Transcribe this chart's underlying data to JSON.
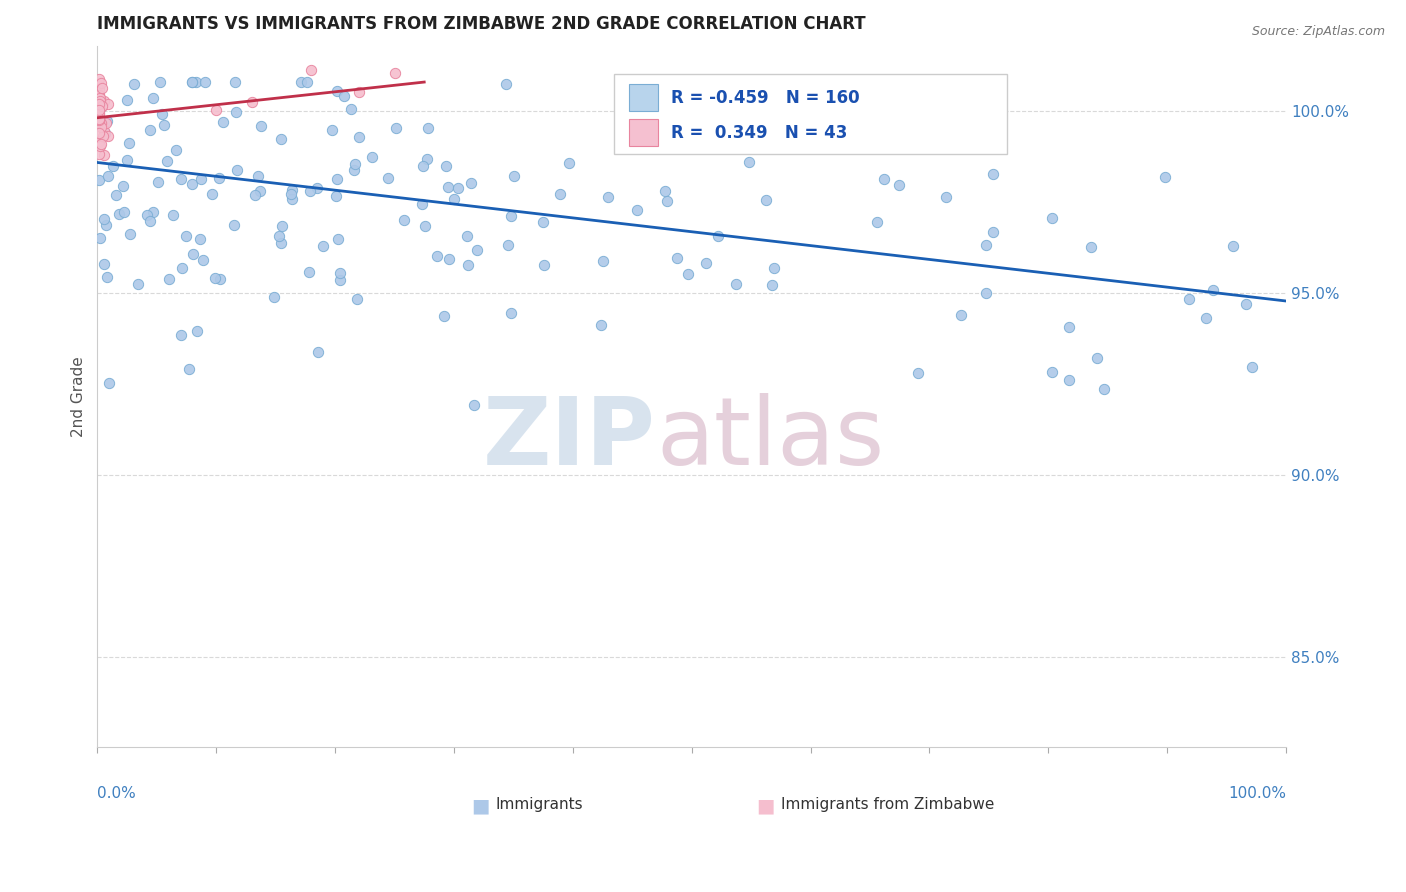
{
  "title": "IMMIGRANTS VS IMMIGRANTS FROM ZIMBABWE 2ND GRADE CORRELATION CHART",
  "source": "Source: ZipAtlas.com",
  "ylabel": "2nd Grade",
  "y_ticks": [
    0.85,
    0.9,
    0.95,
    1.0
  ],
  "y_tick_labels": [
    "85.0%",
    "90.0%",
    "95.0%",
    "100.0%"
  ],
  "xlim": [
    0.0,
    1.0
  ],
  "ylim": [
    0.825,
    1.018
  ],
  "blue_R": -0.459,
  "blue_N": 160,
  "pink_R": 0.349,
  "pink_N": 43,
  "blue_color": "#adc8e8",
  "blue_edge_color": "#7aadd4",
  "pink_color": "#f5bece",
  "pink_edge_color": "#e8849e",
  "blue_line_color": "#1a5fb4",
  "pink_line_color": "#c0304a",
  "legend_blue_face": "#b8d4ec",
  "legend_pink_face": "#f5c0d0",
  "watermark_zip_color": "#c8d8e8",
  "watermark_atlas_color": "#d8b8c8"
}
